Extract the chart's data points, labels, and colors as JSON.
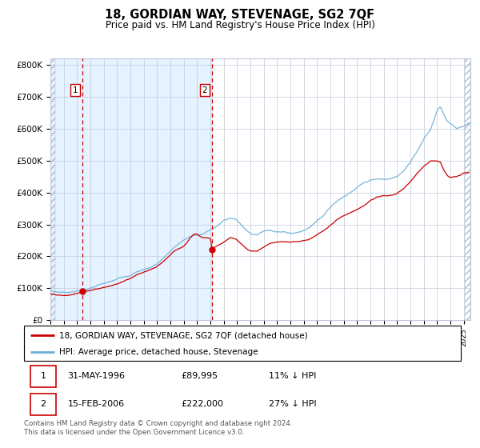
{
  "title": "18, GORDIAN WAY, STEVENAGE, SG2 7QF",
  "subtitle": "Price paid vs. HM Land Registry's House Price Index (HPI)",
  "hpi_color": "#6baed6",
  "price_color": "#cc0000",
  "sale1_date_num": 1996.42,
  "sale1_price": 89995,
  "sale2_date_num": 2006.12,
  "sale2_price": 222000,
  "ylim": [
    0,
    820000
  ],
  "xlim_start": 1994.0,
  "xlim_end": 2025.5,
  "legend_line1": "18, GORDIAN WAY, STEVENAGE, SG2 7QF (detached house)",
  "legend_line2": "HPI: Average price, detached house, Stevenage",
  "table_row1": [
    "1",
    "31-MAY-1996",
    "£89,995",
    "11% ↓ HPI"
  ],
  "table_row2": [
    "2",
    "15-FEB-2006",
    "£222,000",
    "27% ↓ HPI"
  ],
  "footer": "Contains HM Land Registry data © Crown copyright and database right 2024.\nThis data is licensed under the Open Government Licence v3.0.",
  "bg_shaded_color": "#ddeeff",
  "vline_color": "#cc0000",
  "grid_color": "#c0c8d8",
  "ytick_labels": [
    "£0",
    "£100K",
    "£200K",
    "£300K",
    "£400K",
    "£500K",
    "£600K",
    "£700K",
    "£800K"
  ],
  "ytick_values": [
    0,
    100000,
    200000,
    300000,
    400000,
    500000,
    600000,
    700000,
    800000
  ],
  "hpi_keypoints": [
    [
      1994.0,
      93000
    ],
    [
      1994.5,
      89000
    ],
    [
      1995.0,
      88000
    ],
    [
      1995.5,
      90000
    ],
    [
      1996.0,
      93000
    ],
    [
      1996.5,
      96000
    ],
    [
      1997.0,
      101000
    ],
    [
      1997.5,
      108000
    ],
    [
      1998.0,
      113000
    ],
    [
      1998.5,
      117000
    ],
    [
      1999.0,
      124000
    ],
    [
      1999.5,
      133000
    ],
    [
      2000.0,
      140000
    ],
    [
      2000.5,
      150000
    ],
    [
      2001.0,
      157000
    ],
    [
      2001.5,
      163000
    ],
    [
      2002.0,
      175000
    ],
    [
      2002.5,
      195000
    ],
    [
      2003.0,
      215000
    ],
    [
      2003.5,
      232000
    ],
    [
      2004.0,
      248000
    ],
    [
      2004.5,
      258000
    ],
    [
      2005.0,
      262000
    ],
    [
      2005.5,
      268000
    ],
    [
      2006.0,
      278000
    ],
    [
      2006.5,
      290000
    ],
    [
      2007.0,
      308000
    ],
    [
      2007.5,
      318000
    ],
    [
      2008.0,
      310000
    ],
    [
      2008.5,
      288000
    ],
    [
      2009.0,
      270000
    ],
    [
      2009.5,
      268000
    ],
    [
      2010.0,
      278000
    ],
    [
      2010.5,
      282000
    ],
    [
      2011.0,
      280000
    ],
    [
      2011.5,
      278000
    ],
    [
      2012.0,
      275000
    ],
    [
      2012.5,
      278000
    ],
    [
      2013.0,
      283000
    ],
    [
      2013.5,
      295000
    ],
    [
      2014.0,
      315000
    ],
    [
      2014.5,
      335000
    ],
    [
      2015.0,
      360000
    ],
    [
      2015.5,
      380000
    ],
    [
      2016.0,
      395000
    ],
    [
      2016.5,
      405000
    ],
    [
      2017.0,
      418000
    ],
    [
      2017.5,
      430000
    ],
    [
      2018.0,
      438000
    ],
    [
      2018.5,
      440000
    ],
    [
      2019.0,
      438000
    ],
    [
      2019.5,
      440000
    ],
    [
      2020.0,
      445000
    ],
    [
      2020.5,
      465000
    ],
    [
      2021.0,
      495000
    ],
    [
      2021.5,
      530000
    ],
    [
      2022.0,
      565000
    ],
    [
      2022.5,
      595000
    ],
    [
      2023.0,
      655000
    ],
    [
      2023.25,
      670000
    ],
    [
      2023.5,
      645000
    ],
    [
      2023.75,
      625000
    ],
    [
      2024.0,
      615000
    ],
    [
      2024.5,
      600000
    ],
    [
      2025.0,
      608000
    ],
    [
      2025.4,
      618000
    ]
  ],
  "price_keypoints": [
    [
      1994.0,
      83000
    ],
    [
      1994.5,
      80000
    ],
    [
      1995.0,
      79000
    ],
    [
      1995.5,
      82000
    ],
    [
      1996.0,
      85000
    ],
    [
      1996.42,
      89995
    ],
    [
      1996.5,
      90000
    ],
    [
      1997.0,
      95000
    ],
    [
      1997.5,
      100000
    ],
    [
      1998.0,
      105000
    ],
    [
      1998.5,
      109000
    ],
    [
      1999.0,
      115000
    ],
    [
      1999.5,
      123000
    ],
    [
      2000.0,
      130000
    ],
    [
      2000.5,
      140000
    ],
    [
      2001.0,
      148000
    ],
    [
      2001.5,
      153000
    ],
    [
      2002.0,
      162000
    ],
    [
      2002.5,
      180000
    ],
    [
      2003.0,
      200000
    ],
    [
      2003.5,
      215000
    ],
    [
      2004.0,
      228000
    ],
    [
      2004.25,
      240000
    ],
    [
      2004.5,
      255000
    ],
    [
      2004.75,
      265000
    ],
    [
      2005.0,
      268000
    ],
    [
      2005.25,
      262000
    ],
    [
      2005.5,
      258000
    ],
    [
      2005.75,
      255000
    ],
    [
      2006.0,
      255000
    ],
    [
      2006.12,
      222000
    ],
    [
      2006.5,
      230000
    ],
    [
      2007.0,
      242000
    ],
    [
      2007.5,
      255000
    ],
    [
      2008.0,
      248000
    ],
    [
      2008.5,
      230000
    ],
    [
      2009.0,
      215000
    ],
    [
      2009.5,
      215000
    ],
    [
      2010.0,
      228000
    ],
    [
      2010.5,
      240000
    ],
    [
      2011.0,
      243000
    ],
    [
      2011.5,
      242000
    ],
    [
      2012.0,
      240000
    ],
    [
      2012.5,
      242000
    ],
    [
      2013.0,
      245000
    ],
    [
      2013.5,
      252000
    ],
    [
      2014.0,
      265000
    ],
    [
      2014.5,
      278000
    ],
    [
      2015.0,
      295000
    ],
    [
      2015.5,
      312000
    ],
    [
      2016.0,
      325000
    ],
    [
      2016.5,
      335000
    ],
    [
      2017.0,
      348000
    ],
    [
      2017.5,
      360000
    ],
    [
      2018.0,
      375000
    ],
    [
      2018.5,
      385000
    ],
    [
      2019.0,
      388000
    ],
    [
      2019.5,
      390000
    ],
    [
      2020.0,
      393000
    ],
    [
      2020.5,
      408000
    ],
    [
      2021.0,
      430000
    ],
    [
      2021.5,
      455000
    ],
    [
      2022.0,
      478000
    ],
    [
      2022.5,
      498000
    ],
    [
      2023.0,
      498000
    ],
    [
      2023.25,
      495000
    ],
    [
      2023.5,
      470000
    ],
    [
      2023.75,
      455000
    ],
    [
      2024.0,
      448000
    ],
    [
      2024.5,
      450000
    ],
    [
      2025.0,
      460000
    ],
    [
      2025.4,
      462000
    ]
  ]
}
